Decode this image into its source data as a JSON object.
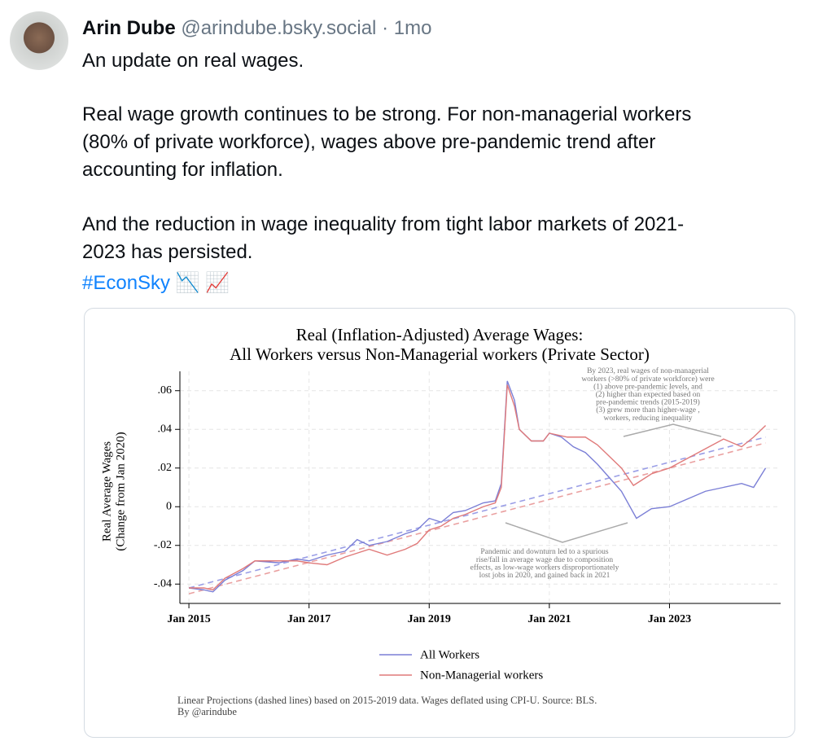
{
  "post": {
    "author": "Arin Dube",
    "handle": "@arindube.bsky.social",
    "separator": "·",
    "time": "1mo",
    "paragraphs": [
      [
        "An update on real wages."
      ],
      [
        "Real wage growth continues to be strong. For non-managerial workers",
        "(80% of private workforce), wages above pre-pandemic trend after",
        "accounting for inflation."
      ],
      [
        "And the reduction in wage inequality from tight labor markets of 2021-",
        "2023 has persisted."
      ]
    ],
    "hashtag": "#EconSky",
    "emoji": "📉 📈",
    "chart": {
      "type": "line",
      "title": [
        "Real (Inflation-Adjusted) Average Wages:",
        "All Workers versus Non-Managerial workers (Private Sector)"
      ],
      "ylabel": [
        "Real Average Wages",
        "(Change from Jan 2020)"
      ],
      "xlim": [
        2014.85,
        2024.85
      ],
      "xticks": [
        {
          "value": 2015,
          "label": "Jan 2015"
        },
        {
          "value": 2017,
          "label": "Jan 2017"
        },
        {
          "value": 2019,
          "label": "Jan 2019"
        },
        {
          "value": 2021,
          "label": "Jan 2021"
        },
        {
          "value": 2023,
          "label": "Jan 2023"
        }
      ],
      "ylim": [
        -0.05,
        0.07
      ],
      "yticks": [
        {
          "value": -0.04,
          "label": "-.04"
        },
        {
          "value": -0.02,
          "label": "-.02"
        },
        0,
        {
          "value": 0.02,
          "label": ".02"
        },
        {
          "value": 0.04,
          "label": ".04"
        },
        {
          "value": 0.06,
          "label": ".06"
        }
      ],
      "grid": true,
      "series": [
        {
          "name": "All Workers",
          "color": "#7b7fd6",
          "x": [
            2015.0,
            2015.25,
            2015.4,
            2015.6,
            2015.9,
            2016.1,
            2016.5,
            2016.8,
            2017.0,
            2017.3,
            2017.6,
            2017.8,
            2018.0,
            2018.3,
            2018.6,
            2018.8,
            2019.0,
            2019.2,
            2019.4,
            2019.6,
            2019.9,
            2020.1,
            2020.2,
            2020.3,
            2020.42,
            2020.5,
            2020.7,
            2020.9,
            2021.0,
            2021.2,
            2021.4,
            2021.6,
            2021.8,
            2022.0,
            2022.2,
            2022.45,
            2022.7,
            2023.0,
            2023.3,
            2023.6,
            2023.9,
            2024.2,
            2024.4,
            2024.6
          ],
          "values": [
            -0.042,
            -0.043,
            -0.044,
            -0.038,
            -0.033,
            -0.028,
            -0.029,
            -0.027,
            -0.028,
            -0.025,
            -0.023,
            -0.017,
            -0.02,
            -0.018,
            -0.014,
            -0.012,
            -0.006,
            -0.008,
            -0.003,
            -0.002,
            0.002,
            0.003,
            0.012,
            0.065,
            0.055,
            0.04,
            0.034,
            0.034,
            0.038,
            0.036,
            0.031,
            0.028,
            0.022,
            0.015,
            0.008,
            -0.006,
            -0.001,
            0.0,
            0.004,
            0.008,
            0.01,
            0.012,
            0.01,
            0.02
          ]
        },
        {
          "name": "Non-Managerial workers",
          "color": "#e07a7a",
          "x": [
            2015.0,
            2015.25,
            2015.4,
            2015.6,
            2015.9,
            2016.1,
            2016.5,
            2016.8,
            2017.0,
            2017.3,
            2017.6,
            2017.8,
            2018.0,
            2018.3,
            2018.6,
            2018.8,
            2019.0,
            2019.2,
            2019.4,
            2019.6,
            2019.9,
            2020.1,
            2020.2,
            2020.3,
            2020.42,
            2020.5,
            2020.7,
            2020.9,
            2021.0,
            2021.3,
            2021.6,
            2021.8,
            2022.0,
            2022.2,
            2022.4,
            2022.7,
            2023.0,
            2023.3,
            2023.6,
            2023.9,
            2024.2,
            2024.4,
            2024.6
          ],
          "values": [
            -0.042,
            -0.042,
            -0.043,
            -0.037,
            -0.032,
            -0.028,
            -0.028,
            -0.028,
            -0.029,
            -0.03,
            -0.026,
            -0.024,
            -0.022,
            -0.025,
            -0.022,
            -0.019,
            -0.012,
            -0.01,
            -0.006,
            -0.004,
            0.0,
            0.002,
            0.01,
            0.063,
            0.052,
            0.04,
            0.034,
            0.034,
            0.038,
            0.036,
            0.036,
            0.032,
            0.026,
            0.02,
            0.011,
            0.017,
            0.02,
            0.025,
            0.03,
            0.035,
            0.031,
            0.036,
            0.042
          ]
        }
      ],
      "projections": [
        {
          "color": "#9a9ee6",
          "x": [
            2015.0,
            2024.6
          ],
          "values": [
            -0.042,
            0.036
          ]
        },
        {
          "color": "#eaa0a0",
          "x": [
            2015.0,
            2024.6
          ],
          "values": [
            -0.045,
            0.033
          ]
        }
      ],
      "annotations": [
        [
          "By 2023, real wages of non-managerial",
          "workers (>80% of private workforce) were",
          "(1) above pre-pandemic levels, and",
          "(2) higher than expected based on",
          "pre-pandemic trends (2015-2019)",
          "(3) grew more than higher-wage ,",
          "workers, reducing inequality"
        ],
        [
          "Pandemic and downturn led to a spurious",
          "rise/fall in average wage due to composition",
          "effects, as low-wage workers disproportionately",
          "lost jobs in 2020, and gained back in 2021"
        ]
      ],
      "caption": [
        "Linear Projections (dashed lines) based on 2015-2019 data. Wages deflated using CPI-U. Source: BLS.",
        "By @arindube"
      ]
    }
  }
}
